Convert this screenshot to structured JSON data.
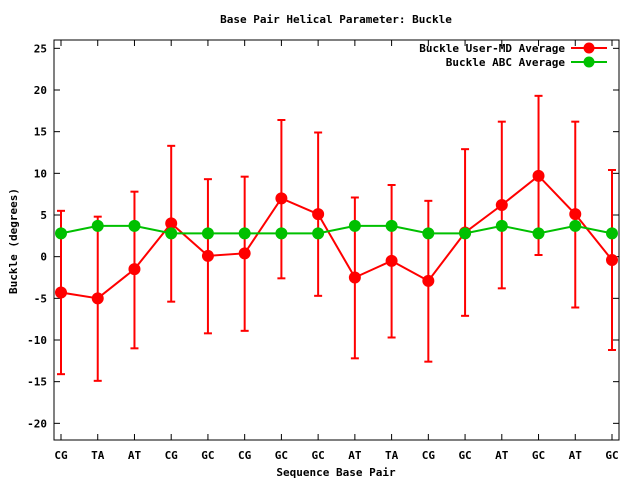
{
  "chart_data": {
    "type": "line",
    "title": "Base Pair Helical Parameter: Buckle",
    "xlabel": "Sequence Base Pair",
    "ylabel": "Buckle (degrees)",
    "categories": [
      "CG",
      "TA",
      "AT",
      "CG",
      "GC",
      "CG",
      "GC",
      "GC",
      "AT",
      "TA",
      "CG",
      "GC",
      "AT",
      "GC",
      "AT",
      "GC"
    ],
    "ylim": [
      -22,
      26
    ],
    "yticks": [
      -20,
      -15,
      -10,
      -5,
      0,
      5,
      10,
      15,
      20,
      25
    ],
    "grid": false,
    "legend": "top-right",
    "series": [
      {
        "name": "Buckle User-MD Average",
        "color": "#ff0000",
        "values": [
          -4.3,
          -5.0,
          -1.5,
          4.0,
          0.1,
          0.4,
          7.0,
          5.1,
          -2.5,
          -0.5,
          -2.9,
          2.9,
          6.2,
          9.7,
          5.1,
          -0.4
        ],
        "err_low": [
          -14.1,
          -14.9,
          -11.0,
          -5.4,
          -9.2,
          -8.9,
          -2.6,
          -4.7,
          -12.2,
          -9.7,
          -12.6,
          -7.1,
          -3.8,
          0.2,
          -6.1,
          -11.2
        ],
        "err_high": [
          5.5,
          4.8,
          7.8,
          13.3,
          9.3,
          9.6,
          16.4,
          14.9,
          7.1,
          8.6,
          6.7,
          12.9,
          16.2,
          19.3,
          16.2,
          10.4
        ]
      },
      {
        "name": "Buckle ABC Average",
        "color": "#00c000",
        "values": [
          2.8,
          3.7,
          3.7,
          2.8,
          2.8,
          2.8,
          2.8,
          2.8,
          3.7,
          3.7,
          2.8,
          2.8,
          3.7,
          2.8,
          3.7,
          2.8
        ]
      }
    ]
  }
}
